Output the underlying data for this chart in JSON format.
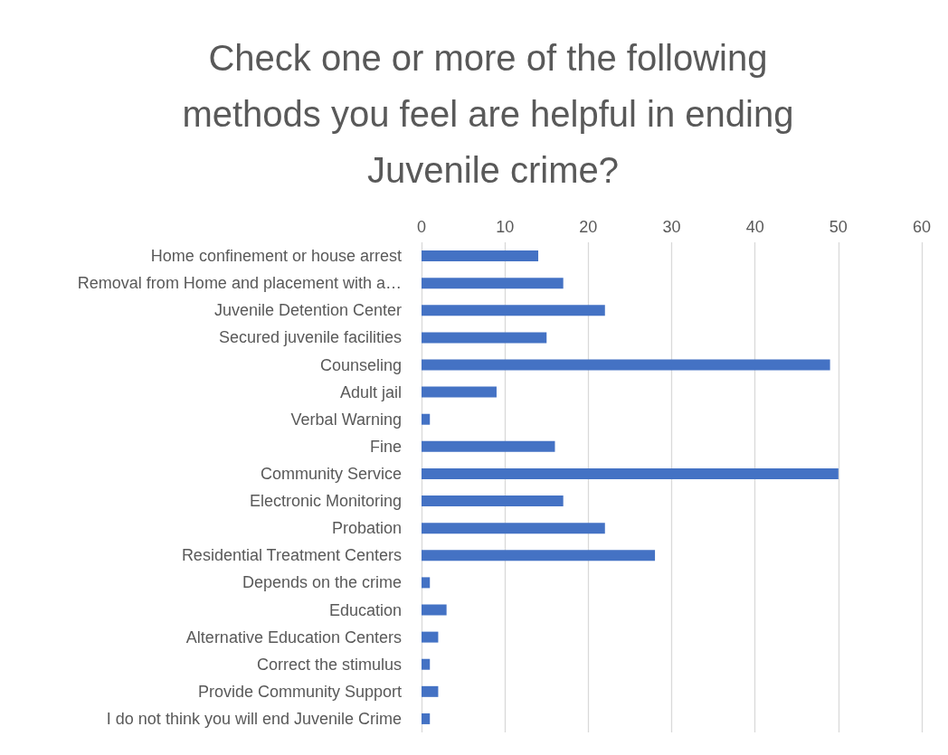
{
  "chart_data": {
    "type": "bar",
    "orientation": "horizontal",
    "title": "Check one or more of the following methods you feel are helpful in ending Juvenile crime?",
    "categories": [
      "Home confinement or house arrest",
      "Removal from Home and placement with a…",
      "Juvenile Detention Center",
      "Secured juvenile facilities",
      "Counseling",
      "Adult jail",
      "Verbal Warning",
      "Fine",
      "Community Service",
      "Electronic Monitoring",
      "Probation",
      "Residential Treatment Centers",
      "Depends on the crime",
      "Education",
      "Alternative Education Centers",
      "Correct the stimulus",
      "Provide Community Support",
      "I do not think you will end Juvenile Crime"
    ],
    "values": [
      14,
      17,
      22,
      15,
      49,
      9,
      1,
      16,
      50,
      17,
      22,
      28,
      1,
      3,
      2,
      1,
      2,
      1
    ],
    "color": "#4472c4",
    "xlim": [
      0,
      60
    ],
    "xticks": [
      0,
      10,
      20,
      30,
      40,
      50,
      60
    ],
    "grid": "x"
  }
}
